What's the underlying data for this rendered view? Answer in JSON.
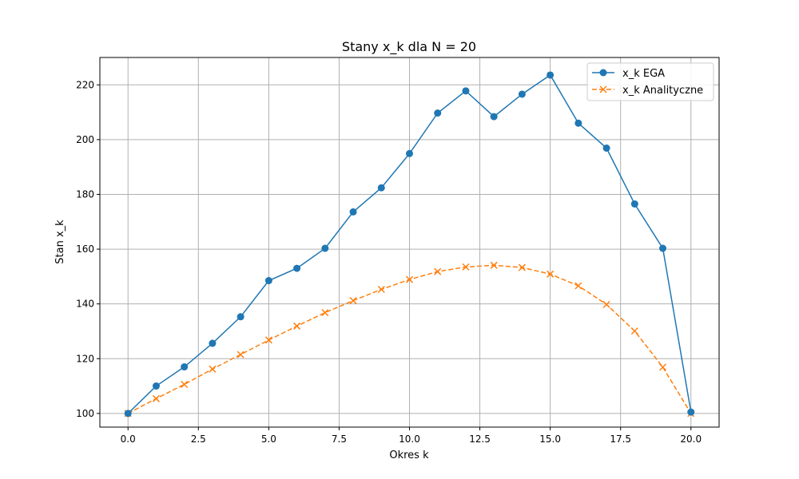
{
  "chart_data": {
    "type": "line",
    "title": "Stany x_k dla N = 20",
    "xlabel": "Okres k",
    "ylabel": "Stan x_k",
    "xlim": [
      -1.0,
      21.0
    ],
    "ylim": [
      95,
      230
    ],
    "x_ticks": [
      0.0,
      2.5,
      5.0,
      7.5,
      10.0,
      12.5,
      15.0,
      17.5,
      20.0
    ],
    "x_tick_labels": [
      "0.0",
      "2.5",
      "5.0",
      "7.5",
      "10.0",
      "12.5",
      "15.0",
      "17.5",
      "20.0"
    ],
    "y_ticks": [
      100,
      120,
      140,
      160,
      180,
      200,
      220
    ],
    "y_tick_labels": [
      "100",
      "120",
      "140",
      "160",
      "180",
      "200",
      "220"
    ],
    "grid": true,
    "legend_position": "top-right",
    "x": [
      0,
      1,
      2,
      3,
      4,
      5,
      6,
      7,
      8,
      9,
      10,
      11,
      12,
      13,
      14,
      15,
      16,
      17,
      18,
      19,
      20
    ],
    "series": [
      {
        "name": "x_k EGA",
        "color": "#1f77b4",
        "marker": "circle",
        "line_style": "solid",
        "values": [
          100.0,
          110.0,
          117.0,
          125.6,
          135.3,
          148.5,
          153.0,
          160.3,
          173.6,
          182.4,
          194.9,
          209.7,
          217.8,
          208.4,
          216.6,
          223.6,
          206.0,
          196.9,
          176.5,
          160.3,
          100.5
        ]
      },
      {
        "name": "x_k Analityczne",
        "color": "#ff7f0e",
        "marker": "x",
        "line_style": "dashed",
        "values": [
          100.0,
          105.4,
          110.6,
          116.2,
          121.5,
          126.8,
          131.9,
          136.8,
          141.2,
          145.3,
          148.9,
          151.8,
          153.5,
          154.1,
          153.3,
          150.9,
          146.6,
          139.8,
          130.1,
          116.9,
          100.0
        ]
      }
    ]
  }
}
